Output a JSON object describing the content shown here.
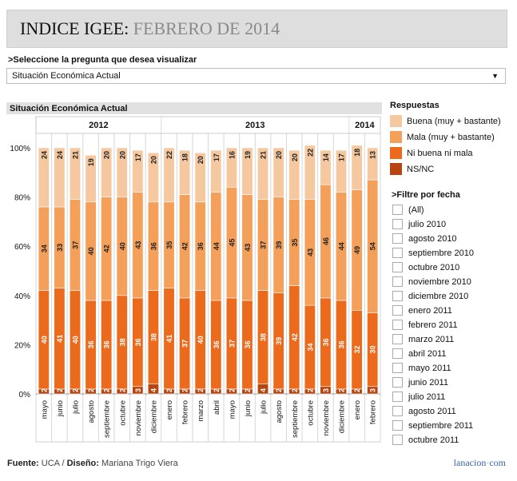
{
  "header": {
    "title_main": "INDICE IGEE:",
    "title_sub": "FEBRERO DE 2014"
  },
  "question": {
    "label": ">Seleccione la pregunta que desea visualizar",
    "selected": "Situación Económica Actual"
  },
  "legend": {
    "title": "Respuestas",
    "items": [
      {
        "label": "Buena (muy + bastante)",
        "color": "#f5c8a0"
      },
      {
        "label": "Mala (muy + bastante)",
        "color": "#f5a05a"
      },
      {
        "label": "Ni buena ni mala",
        "color": "#eb6a1c"
      },
      {
        "label": "NS/NC",
        "color": "#b8440f"
      }
    ]
  },
  "filter": {
    "title": ">Filtre por fecha",
    "items": [
      "(All)",
      "julio 2010",
      "agosto 2010",
      "septiembre 2010",
      "octubre 2010",
      "noviembre 2010",
      "diciembre 2010",
      "enero 2011",
      "febrero 2011",
      "marzo 2011",
      "abril 2011",
      "mayo 2011",
      "junio 2011",
      "julio 2011",
      "agosto 2011",
      "septiembre 2011",
      "octubre 2011"
    ]
  },
  "footer": {
    "source_label": "Fuente:",
    "source": "UCA",
    "design_label": "Diseño:",
    "designer": "Mariana Trigo Viera",
    "brand": "lanacion",
    "brand_dot": "·",
    "brand_tld": "com"
  },
  "chart_data": {
    "type": "bar",
    "stacked": true,
    "title": "Situación Económica Actual",
    "year_groups": [
      {
        "label": "2012",
        "count": 8
      },
      {
        "label": "2013",
        "count": 12
      },
      {
        "label": "2014",
        "count": 2
      }
    ],
    "categories": [
      "mayo",
      "junio",
      "julio",
      "agosto",
      "septiembre",
      "octubre",
      "noviembre",
      "diciembre",
      "enero",
      "febrero",
      "marzo",
      "abril",
      "mayo",
      "junio",
      "julio",
      "agosto",
      "septiembre",
      "octubre",
      "noviembre",
      "diciembre",
      "enero",
      "febrero"
    ],
    "ylim": [
      0,
      100
    ],
    "yticks": [
      "0%",
      "20%",
      "40%",
      "60%",
      "80%",
      "100%"
    ],
    "grid": false,
    "series": [
      {
        "name": "NS/NC",
        "color": "#b8440f",
        "values": [
          2,
          2,
          2,
          2,
          2,
          2,
          3,
          4,
          2,
          2,
          2,
          2,
          2,
          2,
          4,
          2,
          2,
          2,
          3,
          2,
          2,
          3
        ]
      },
      {
        "name": "Ni buena ni mala",
        "color": "#eb6a1c",
        "values": [
          40,
          41,
          40,
          36,
          36,
          38,
          36,
          38,
          41,
          37,
          40,
          36,
          37,
          36,
          38,
          39,
          42,
          34,
          36,
          36,
          32,
          30
        ]
      },
      {
        "name": "Mala (muy + bastante)",
        "color": "#f5a05a",
        "values": [
          34,
          33,
          37,
          40,
          42,
          40,
          43,
          36,
          35,
          42,
          36,
          44,
          45,
          43,
          37,
          39,
          35,
          43,
          46,
          44,
          49,
          54
        ]
      },
      {
        "name": "Buena (muy + bastante)",
        "color": "#f5c8a0",
        "values": [
          24,
          24,
          21,
          19,
          20,
          20,
          17,
          20,
          22,
          18,
          20,
          17,
          16,
          19,
          21,
          20,
          20,
          22,
          14,
          17,
          18,
          13
        ]
      }
    ]
  }
}
